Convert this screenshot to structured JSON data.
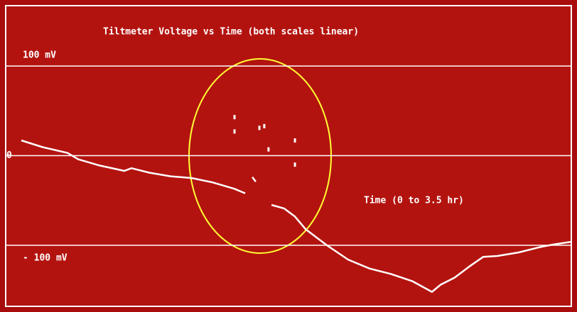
{
  "chart_data": {
    "type": "line",
    "title": "Tiltmeter Voltage vs Time (both scales linear)",
    "x_label": "Time (0 to 3.5 hr)",
    "xlim": [
      0,
      3.5
    ],
    "ylim": [
      -165,
      150
    ],
    "yticks": [
      {
        "value": 100,
        "label": "100 mV"
      },
      0,
      {
        "value": -100,
        "label": "- 100 mV"
      }
    ],
    "grid": true,
    "series": [
      {
        "color": "#ffffff",
        "x": [
          0,
          0.135,
          0.294,
          0.361,
          0.497,
          0.655,
          0.7,
          0.813,
          0.948,
          1.084,
          1.219,
          1.355,
          1.423,
          1.445,
          1.468,
          1.49,
          1.513,
          1.59,
          1.671,
          1.739,
          1.806,
          1.942,
          2.077,
          2.213,
          2.348,
          2.484,
          2.61,
          2.665,
          2.755,
          2.845,
          2.935,
          3.026,
          3.161,
          3.297,
          3.387,
          3.5
        ],
        "values": [
          17,
          9.5,
          3,
          -4,
          -11,
          -17,
          -14,
          -19,
          -23,
          -25,
          -30,
          -37,
          -42,
          null,
          -24,
          -29,
          null,
          -55,
          -59,
          -68,
          -82,
          -100,
          -116,
          -126,
          -132,
          -140,
          -152,
          -144,
          -136,
          -124,
          -113,
          -112,
          -108,
          -102,
          -99,
          -96
        ]
      },
      {
        "color": "#ffffff",
        "marker": true,
        "x": [
          1.355,
          1.355,
          1.513,
          1.544,
          1.571,
          1.739,
          1.739
        ],
        "values": [
          43,
          27,
          31,
          33,
          7,
          17,
          -10
        ]
      }
    ]
  }
}
